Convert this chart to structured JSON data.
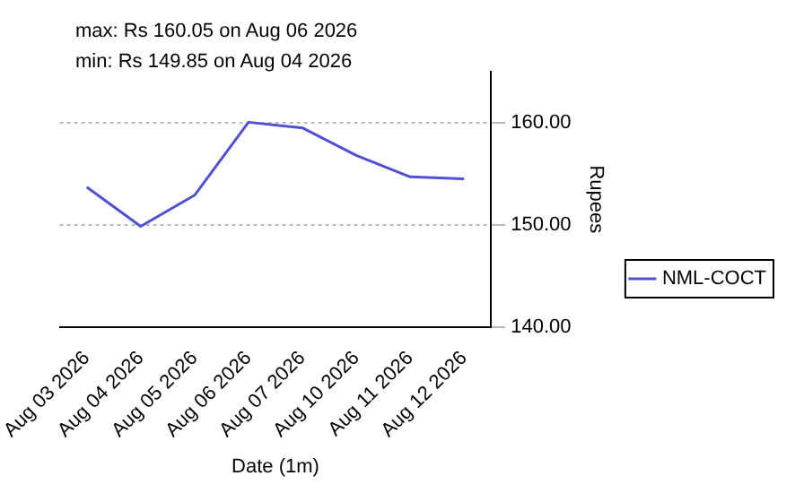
{
  "chart_data": {
    "type": "line",
    "xlabel": "Date (1m)",
    "ylabel": "Rupees",
    "annotations": [
      "max: Rs 160.05 on Aug 06 2026",
      "min: Rs 149.85 on Aug 04 2026"
    ],
    "categories": [
      "Aug 03 2026",
      "Aug 04 2026",
      "Aug 05 2026",
      "Aug 06 2026",
      "Aug 07 2026",
      "Aug 10 2026",
      "Aug 11 2026",
      "Aug 12 2026"
    ],
    "series": [
      {
        "name": "NML-COCT",
        "color": "#5050d0",
        "values": [
          153.7,
          149.85,
          152.9,
          160.05,
          159.5,
          156.8,
          154.7,
          154.5
        ]
      }
    ],
    "ylim": [
      140,
      165
    ],
    "yticks": [
      {
        "value": 140,
        "label": "140.00"
      },
      {
        "value": 150,
        "label": "150.00"
      },
      {
        "value": 160,
        "label": "160.00"
      }
    ],
    "grid": "y",
    "legend": "right",
    "marker": "none",
    "line_style": "solid"
  }
}
